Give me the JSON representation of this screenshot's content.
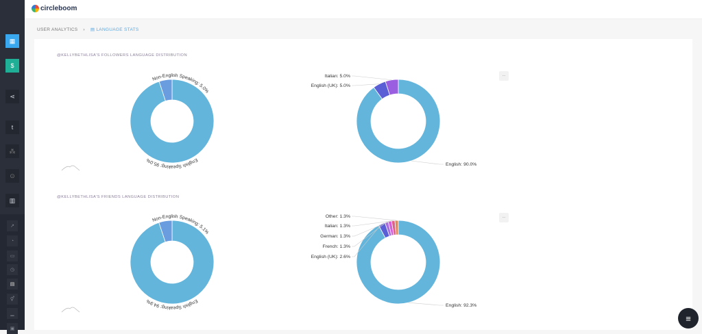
{
  "brand": "circleboom",
  "breadcrumb": {
    "parent": "USER ANALYTICS",
    "current": "LANGUAGE STATS"
  },
  "colors": {
    "main": "#63b5dc",
    "accent": "#6a9de0",
    "uk": "#5b5fd6",
    "italian": "#9a5fe0",
    "french": "#a86ce0",
    "german": "#d45fd8",
    "italian2": "#e0608a",
    "other": "#e08a5c"
  },
  "sections": [
    {
      "title": "@KELLYBETHLISA'S FOLLOWERS LANGUAGE DISTRIBUTION",
      "speaking": [
        {
          "label": "English Speaking: 95.0%",
          "value": 95
        },
        {
          "label": "Non-English Speaking: 5.0%",
          "value": 5
        }
      ],
      "languages": [
        {
          "label": "English: 90.0%",
          "value": 90
        },
        {
          "label": "English (UK): 5.0%",
          "value": 5
        },
        {
          "label": "Italian: 5.0%",
          "value": 5
        }
      ],
      "menu": "..."
    },
    {
      "title": "@KELLYBETHLISA'S FRIENDS LANGUAGE DISTRIBUTION",
      "speaking": [
        {
          "label": "English Speaking: 94.9%",
          "value": 94.9
        },
        {
          "label": "Non-English Speaking: 5.1%",
          "value": 5.1
        }
      ],
      "languages": [
        {
          "label": "English: 92.3%",
          "value": 92.3
        },
        {
          "label": "English (UK): 2.6%",
          "value": 2.6
        },
        {
          "label": "French: 1.3%",
          "value": 1.3
        },
        {
          "label": "German: 1.3%",
          "value": 1.3
        },
        {
          "label": "Italian: 1.3%",
          "value": 1.3
        },
        {
          "label": "Other: 1.3%",
          "value": 1.3
        }
      ],
      "menu": "..."
    }
  ],
  "fab": "≡"
}
